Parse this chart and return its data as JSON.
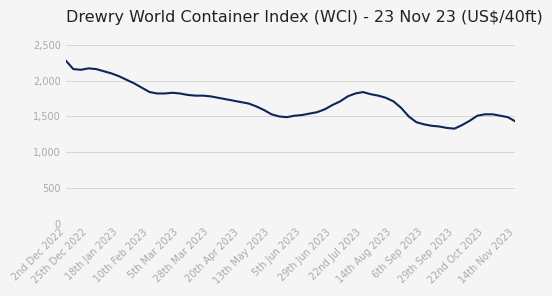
{
  "title": "Drewry World Container Index (WCI) - 23 Nov 23 (US$/40ft)",
  "background_color": "#f5f5f5",
  "line_color": "#0d2657",
  "line_width": 1.5,
  "x_labels": [
    "2nd Dec 2022",
    "25th Dec 2022",
    "18th Jan 2023",
    "10th Feb 2023",
    "5th Mar 2023",
    "28th Mar 2023",
    "20th Apr 2023",
    "13th May 2023",
    "5th Jun 2023",
    "29th Jun 2023",
    "22nd Jul 2023",
    "14th Aug 2023",
    "6th Sep 2023",
    "29th Sep 2023",
    "22nd Oct 2023",
    "14th Nov 2023"
  ],
  "x_indices": [
    0,
    3,
    7,
    11,
    15,
    19,
    23,
    27,
    31,
    35,
    39,
    43,
    47,
    51,
    55,
    59
  ],
  "y_values": [
    2280,
    2160,
    2150,
    2170,
    2160,
    2130,
    2100,
    2060,
    2010,
    1960,
    1900,
    1840,
    1820,
    1820,
    1830,
    1820,
    1800,
    1790,
    1790,
    1780,
    1760,
    1740,
    1720,
    1700,
    1680,
    1640,
    1590,
    1530,
    1500,
    1490,
    1510,
    1520,
    1540,
    1560,
    1600,
    1660,
    1710,
    1780,
    1820,
    1840,
    1810,
    1790,
    1760,
    1710,
    1620,
    1500,
    1420,
    1390,
    1370,
    1360,
    1340,
    1330,
    1380,
    1440,
    1510,
    1530,
    1530,
    1510,
    1490,
    1430
  ],
  "ylim": [
    0,
    2700
  ],
  "yticks": [
    0,
    500,
    1000,
    1500,
    2000,
    2500
  ],
  "grid_color": "#d0d0d0",
  "title_fontsize": 11.5,
  "tick_fontsize": 7,
  "tick_color": "#aaaaaa",
  "title_color": "#222222"
}
